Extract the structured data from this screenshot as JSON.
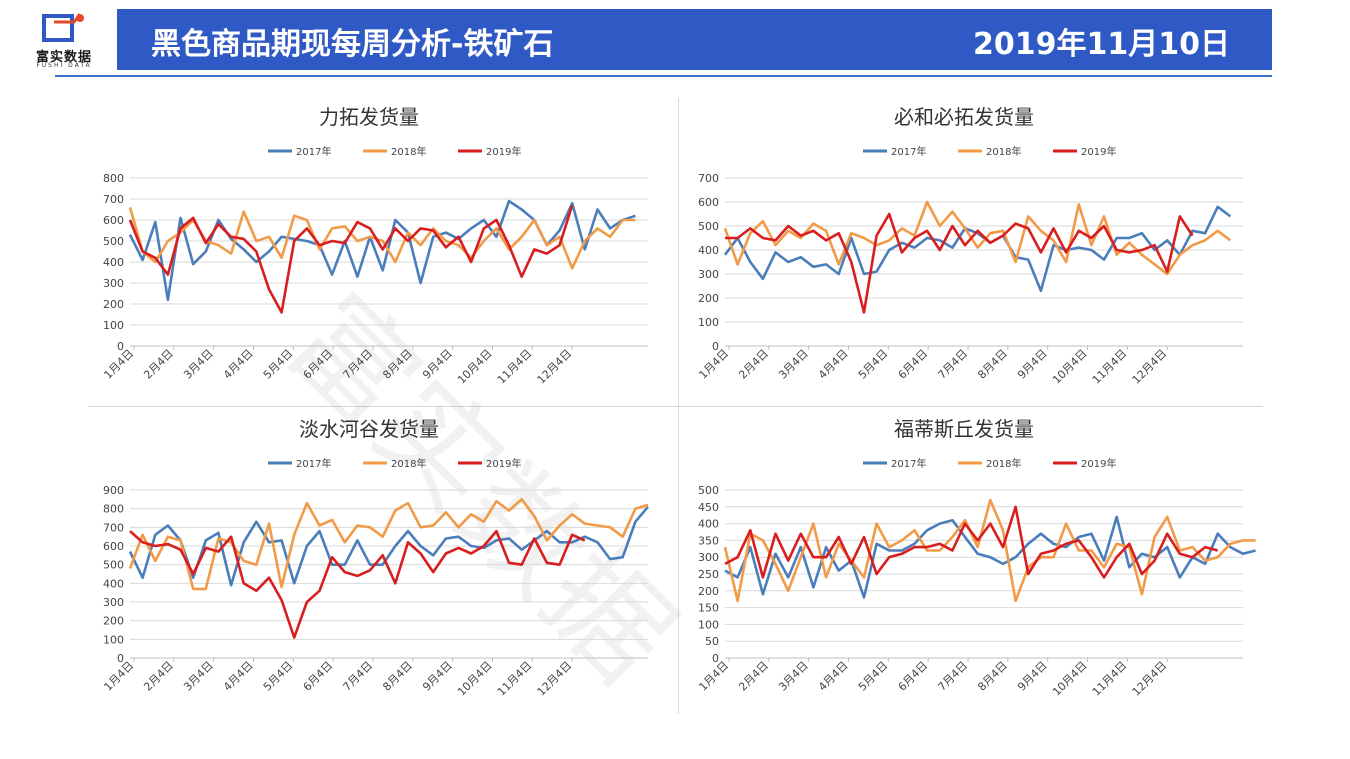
{
  "header": {
    "logo_text": "富实数据",
    "logo_sub": "FUSHI DATA",
    "title": "黑色商品期现每周分析-铁矿石",
    "date": "2019年11月10日"
  },
  "watermark": "富实数据",
  "colors": {
    "banner": "#2f59c5",
    "s2017": "#4a7ebb",
    "s2018": "#f29a47",
    "s2019": "#d81e1e"
  },
  "chart_data": [
    {
      "type": "line",
      "title": "力拓发货量",
      "x_ticks": [
        "1月4日",
        "2月4日",
        "3月4日",
        "4月4日",
        "5月4日",
        "6月4日",
        "7月4日",
        "8月4日",
        "9月4日",
        "10月4日",
        "11月4日",
        "12月4日"
      ],
      "ylim": [
        0,
        800
      ],
      "y_ticks": [
        "0",
        "100",
        "200",
        "300",
        "400",
        "500",
        "600",
        "700",
        "800"
      ],
      "legend": "top",
      "series": [
        {
          "name": "2017年",
          "values": [
            530,
            410,
            590,
            220,
            610,
            390,
            450,
            600,
            510,
            460,
            400,
            450,
            520,
            510,
            500,
            480,
            340,
            500,
            330,
            520,
            360,
            600,
            540,
            300,
            520,
            540,
            510,
            560,
            600,
            520,
            690,
            650,
            600,
            480,
            550,
            680,
            460,
            650,
            560,
            600,
            620
          ]
        },
        {
          "name": "2018年",
          "values": [
            660,
            450,
            400,
            500,
            540,
            600,
            500,
            480,
            440,
            640,
            500,
            520,
            420,
            620,
            600,
            460,
            560,
            570,
            500,
            520,
            500,
            400,
            540,
            480,
            560,
            500,
            480,
            420,
            500,
            560,
            460,
            520,
            600,
            480,
            520,
            370,
            500,
            560,
            520,
            600,
            600
          ]
        },
        {
          "name": "2019年",
          "values": [
            600,
            450,
            420,
            340,
            560,
            610,
            490,
            580,
            520,
            510,
            450,
            270,
            160,
            500,
            560,
            480,
            500,
            490,
            590,
            560,
            460,
            560,
            500,
            560,
            550,
            470,
            520,
            400,
            560,
            600,
            480,
            330,
            460,
            440,
            480,
            670
          ]
        }
      ]
    },
    {
      "type": "line",
      "title": "必和必拓发货量",
      "x_ticks": [
        "1月4日",
        "2月4日",
        "3月4日",
        "4月4日",
        "5月4日",
        "6月4日",
        "7月4日",
        "8月4日",
        "9月4日",
        "10月4日",
        "11月4日",
        "12月4日"
      ],
      "ylim": [
        0,
        700
      ],
      "y_ticks": [
        "0",
        "100",
        "200",
        "300",
        "400",
        "500",
        "600",
        "700"
      ],
      "legend": "top",
      "series": [
        {
          "name": "2017年",
          "values": [
            380,
            450,
            350,
            280,
            390,
            350,
            370,
            330,
            340,
            300,
            450,
            300,
            310,
            400,
            430,
            410,
            450,
            440,
            410,
            490,
            470,
            430,
            460,
            370,
            360,
            230,
            420,
            400,
            410,
            400,
            360,
            450,
            450,
            470,
            400,
            440,
            380,
            480,
            470,
            580,
            540
          ]
        },
        {
          "name": "2018年",
          "values": [
            490,
            340,
            470,
            520,
            420,
            480,
            450,
            510,
            480,
            340,
            470,
            450,
            420,
            440,
            490,
            460,
            600,
            500,
            560,
            490,
            410,
            470,
            480,
            350,
            540,
            480,
            440,
            350,
            590,
            420,
            540,
            380,
            430,
            380,
            340,
            300,
            380,
            420,
            440,
            480,
            440
          ]
        },
        {
          "name": "2019年",
          "values": [
            450,
            450,
            490,
            450,
            440,
            500,
            460,
            480,
            440,
            470,
            350,
            140,
            460,
            550,
            390,
            450,
            480,
            400,
            500,
            420,
            480,
            430,
            460,
            510,
            490,
            390,
            490,
            390,
            480,
            450,
            500,
            400,
            390,
            400,
            420,
            310,
            540,
            460
          ]
        }
      ]
    },
    {
      "type": "line",
      "title": "淡水河谷发货量",
      "x_ticks": [
        "1月4日",
        "2月4日",
        "3月4日",
        "4月4日",
        "5月4日",
        "6月4日",
        "7月4日",
        "8月4日",
        "9月4日",
        "10月4日",
        "11月4日",
        "12月4日"
      ],
      "ylim": [
        0,
        900
      ],
      "y_ticks": [
        "0",
        "100",
        "200",
        "300",
        "400",
        "500",
        "600",
        "700",
        "800",
        "900"
      ],
      "legend": "top",
      "series": [
        {
          "name": "2017年",
          "values": [
            570,
            430,
            660,
            710,
            630,
            430,
            630,
            670,
            390,
            620,
            730,
            620,
            630,
            400,
            600,
            680,
            500,
            500,
            630,
            500,
            500,
            600,
            680,
            600,
            550,
            640,
            650,
            600,
            590,
            630,
            640,
            580,
            630,
            680,
            620,
            620,
            650,
            620,
            530,
            540,
            730,
            810
          ]
        },
        {
          "name": "2018年",
          "values": [
            480,
            660,
            520,
            650,
            630,
            370,
            370,
            640,
            620,
            520,
            500,
            720,
            380,
            660,
            830,
            710,
            740,
            620,
            710,
            700,
            650,
            790,
            830,
            700,
            710,
            780,
            700,
            770,
            730,
            840,
            790,
            850,
            760,
            630,
            710,
            770,
            720,
            710,
            700,
            650,
            800,
            820
          ]
        },
        {
          "name": "2019年",
          "values": [
            680,
            620,
            600,
            610,
            580,
            450,
            590,
            570,
            650,
            400,
            360,
            430,
            310,
            110,
            300,
            360,
            540,
            460,
            440,
            470,
            550,
            400,
            620,
            560,
            460,
            560,
            590,
            560,
            600,
            680,
            510,
            500,
            640,
            510,
            500,
            660,
            630
          ]
        }
      ]
    },
    {
      "type": "line",
      "title": "福蒂斯丘发货量",
      "x_ticks": [
        "1月4日",
        "2月4日",
        "3月4日",
        "4月4日",
        "5月4日",
        "6月4日",
        "7月4日",
        "8月4日",
        "9月4日",
        "10月4日",
        "11月4日",
        "12月4日"
      ],
      "ylim": [
        0,
        500
      ],
      "y_ticks": [
        "0",
        "50",
        "100",
        "150",
        "200",
        "250",
        "300",
        "350",
        "400",
        "450",
        "500"
      ],
      "legend": "top",
      "series": [
        {
          "name": "2017年",
          "values": [
            260,
            240,
            330,
            190,
            310,
            240,
            330,
            210,
            330,
            260,
            290,
            180,
            340,
            320,
            320,
            340,
            380,
            400,
            410,
            360,
            310,
            300,
            280,
            300,
            340,
            370,
            340,
            330,
            360,
            370,
            290,
            420,
            270,
            310,
            300,
            330,
            240,
            300,
            280,
            370,
            330,
            310,
            320
          ]
        },
        {
          "name": "2018年",
          "values": [
            330,
            170,
            370,
            350,
            280,
            200,
            300,
            400,
            240,
            340,
            290,
            240,
            400,
            330,
            350,
            380,
            320,
            320,
            360,
            410,
            330,
            470,
            380,
            170,
            270,
            300,
            300,
            400,
            320,
            320,
            270,
            340,
            330,
            190,
            360,
            420,
            320,
            330,
            290,
            300,
            340,
            350,
            350
          ]
        },
        {
          "name": "2019年",
          "values": [
            280,
            300,
            380,
            240,
            370,
            290,
            370,
            300,
            300,
            360,
            280,
            360,
            250,
            300,
            310,
            330,
            330,
            340,
            320,
            400,
            350,
            400,
            330,
            450,
            250,
            310,
            320,
            340,
            350,
            300,
            240,
            300,
            340,
            250,
            290,
            370,
            310,
            300,
            330,
            320
          ]
        }
      ]
    }
  ]
}
